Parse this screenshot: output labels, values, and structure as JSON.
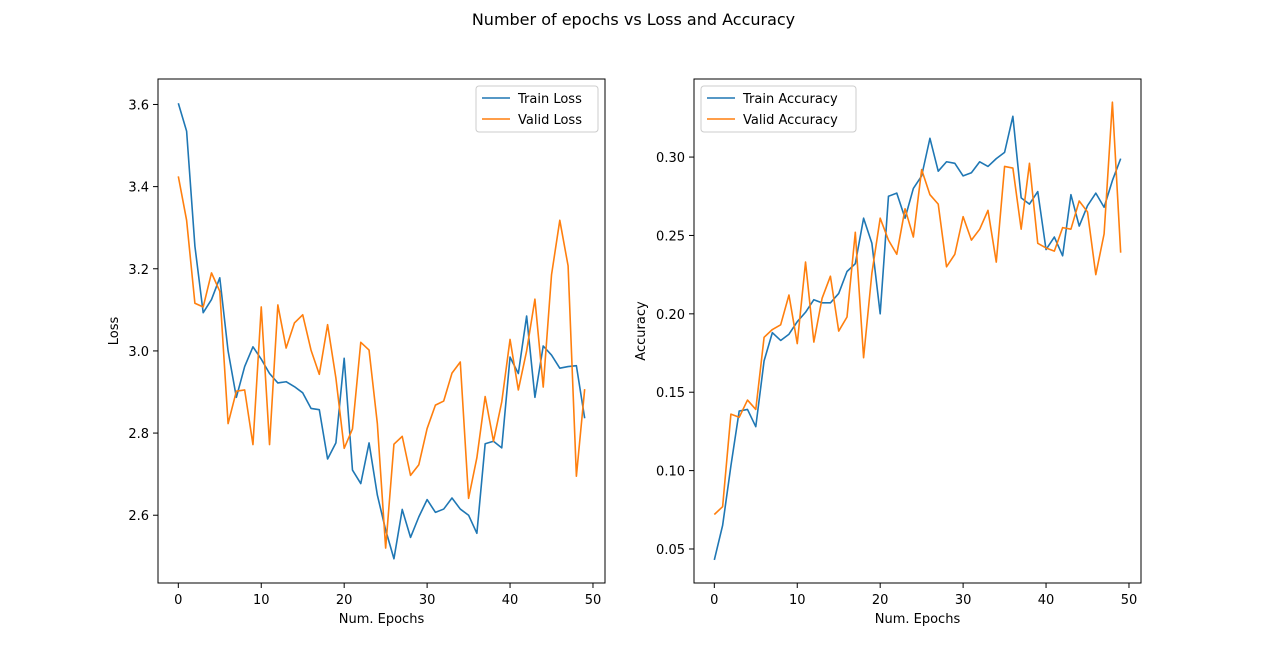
{
  "figure": {
    "title": "Number of epochs vs Loss and Accuracy"
  },
  "chart_data": [
    {
      "type": "line",
      "xlabel": "Num. Epochs",
      "ylabel": "Loss",
      "xlim": [
        -2.45,
        51.45
      ],
      "ylim": [
        2.435,
        3.662
      ],
      "xticks": [
        0,
        10,
        20,
        30,
        40,
        50
      ],
      "xtick_labels": [
        "0",
        "10",
        "20",
        "30",
        "40",
        "50"
      ],
      "yticks": [
        2.6,
        2.8,
        3.0,
        3.2,
        3.4,
        3.6
      ],
      "ytick_labels": [
        "2.6",
        "2.8",
        "3.0",
        "3.2",
        "3.4",
        "3.6"
      ],
      "grid": false,
      "legend_position": "top-right",
      "x": [
        0,
        1,
        2,
        3,
        4,
        5,
        6,
        7,
        8,
        9,
        10,
        11,
        12,
        13,
        14,
        15,
        16,
        17,
        18,
        19,
        20,
        21,
        22,
        23,
        24,
        25,
        26,
        27,
        28,
        29,
        30,
        31,
        32,
        33,
        34,
        35,
        36,
        37,
        38,
        39,
        40,
        41,
        42,
        43,
        44,
        45,
        46,
        47,
        48,
        49
      ],
      "series": [
        {
          "name": "Train Loss",
          "color": "#1f77b4",
          "values": [
            3.603,
            3.535,
            3.255,
            3.093,
            3.125,
            3.178,
            3.0,
            2.887,
            2.962,
            3.01,
            2.98,
            2.945,
            2.922,
            2.925,
            2.913,
            2.898,
            2.86,
            2.857,
            2.737,
            2.776,
            2.982,
            2.71,
            2.677,
            2.776,
            2.649,
            2.564,
            2.494,
            2.614,
            2.546,
            2.596,
            2.638,
            2.607,
            2.615,
            2.642,
            2.615,
            2.6,
            2.556,
            2.774,
            2.78,
            2.764,
            2.985,
            2.945,
            3.085,
            2.887,
            3.012,
            2.99,
            2.958,
            2.962,
            2.964,
            2.836
          ]
        },
        {
          "name": "Valid Loss",
          "color": "#ff7f0e",
          "values": [
            3.425,
            3.318,
            3.116,
            3.107,
            3.19,
            3.145,
            2.823,
            2.902,
            2.905,
            2.772,
            3.107,
            2.772,
            3.112,
            3.007,
            3.068,
            3.088,
            3.002,
            2.943,
            3.064,
            2.934,
            2.763,
            2.81,
            3.021,
            3.002,
            2.823,
            2.52,
            2.773,
            2.792,
            2.697,
            2.723,
            2.811,
            2.868,
            2.878,
            2.946,
            2.973,
            2.641,
            2.74,
            2.889,
            2.78,
            2.876,
            3.028,
            2.905,
            3.0,
            3.126,
            2.912,
            3.185,
            3.318,
            3.207,
            2.695,
            2.907
          ]
        }
      ]
    },
    {
      "type": "line",
      "xlabel": "Num. Epochs",
      "ylabel": "Accuracy",
      "xlim": [
        -2.45,
        51.45
      ],
      "ylim": [
        0.0283,
        0.3498
      ],
      "xticks": [
        0,
        10,
        20,
        30,
        40,
        50
      ],
      "xtick_labels": [
        "0",
        "10",
        "20",
        "30",
        "40",
        "50"
      ],
      "yticks": [
        0.05,
        0.1,
        0.15,
        0.2,
        0.25,
        0.3
      ],
      "ytick_labels": [
        "0.05",
        "0.10",
        "0.15",
        "0.20",
        "0.25",
        "0.30"
      ],
      "grid": false,
      "legend_position": "top-left",
      "x": [
        0,
        1,
        2,
        3,
        4,
        5,
        6,
        7,
        8,
        9,
        10,
        11,
        12,
        13,
        14,
        15,
        16,
        17,
        18,
        19,
        20,
        21,
        22,
        23,
        24,
        25,
        26,
        27,
        28,
        29,
        30,
        31,
        32,
        33,
        34,
        35,
        36,
        37,
        38,
        39,
        40,
        41,
        42,
        43,
        44,
        45,
        46,
        47,
        48,
        49
      ],
      "series": [
        {
          "name": "Train Accuracy",
          "color": "#1f77b4",
          "values": [
            0.043,
            0.065,
            0.103,
            0.138,
            0.139,
            0.128,
            0.17,
            0.188,
            0.183,
            0.187,
            0.195,
            0.201,
            0.209,
            0.207,
            0.207,
            0.213,
            0.227,
            0.232,
            0.261,
            0.245,
            0.2,
            0.275,
            0.277,
            0.261,
            0.28,
            0.288,
            0.312,
            0.291,
            0.297,
            0.296,
            0.288,
            0.29,
            0.297,
            0.294,
            0.299,
            0.303,
            0.326,
            0.274,
            0.27,
            0.278,
            0.241,
            0.249,
            0.237,
            0.276,
            0.256,
            0.269,
            0.277,
            0.268,
            0.285,
            0.299
          ]
        },
        {
          "name": "Valid Accuracy",
          "color": "#ff7f0e",
          "values": [
            0.072,
            0.077,
            0.136,
            0.134,
            0.145,
            0.139,
            0.185,
            0.19,
            0.193,
            0.212,
            0.181,
            0.233,
            0.182,
            0.21,
            0.224,
            0.189,
            0.198,
            0.252,
            0.172,
            0.226,
            0.261,
            0.247,
            0.238,
            0.267,
            0.249,
            0.292,
            0.276,
            0.27,
            0.23,
            0.238,
            0.262,
            0.247,
            0.254,
            0.266,
            0.233,
            0.294,
            0.293,
            0.254,
            0.296,
            0.245,
            0.242,
            0.24,
            0.255,
            0.254,
            0.272,
            0.265,
            0.225,
            0.251,
            0.335,
            0.239
          ]
        }
      ]
    }
  ]
}
